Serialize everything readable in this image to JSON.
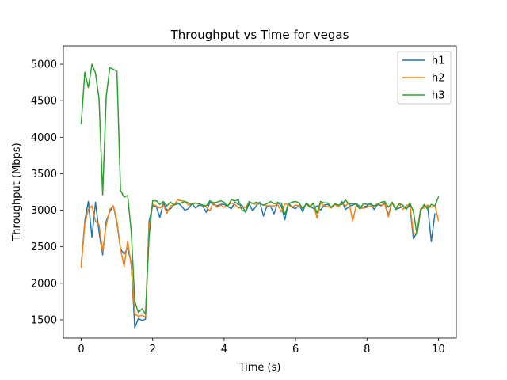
{
  "chart_data": {
    "type": "line",
    "title": "Throughput vs Time for vegas",
    "xlabel": "Time (s)",
    "ylabel": "Throughput (Mbps)",
    "xlim": [
      -0.5,
      10.5
    ],
    "ylim": [
      1250,
      5250
    ],
    "xticks": [
      0,
      2,
      4,
      6,
      8,
      10
    ],
    "yticks": [
      1500,
      2000,
      2500,
      3000,
      3500,
      4000,
      4500,
      5000
    ],
    "grid": false,
    "legend_position": "top-right",
    "x": [
      0.0,
      0.1,
      0.2,
      0.3,
      0.4,
      0.5,
      0.6,
      0.7,
      0.8,
      0.9,
      1.0,
      1.1,
      1.2,
      1.3,
      1.4,
      1.5,
      1.6,
      1.7,
      1.8,
      1.9,
      2.0,
      2.1,
      2.2,
      2.3,
      2.4,
      2.5,
      2.6,
      2.7,
      2.8,
      2.9,
      3.0,
      3.1,
      3.2,
      3.3,
      3.4,
      3.5,
      3.6,
      3.7,
      3.8,
      3.9,
      4.0,
      4.1,
      4.2,
      4.3,
      4.4,
      4.5,
      4.6,
      4.7,
      4.8,
      4.9,
      5.0,
      5.1,
      5.2,
      5.3,
      5.4,
      5.5,
      5.6,
      5.7,
      5.8,
      5.9,
      6.0,
      6.1,
      6.2,
      6.3,
      6.4,
      6.5,
      6.6,
      6.7,
      6.8,
      6.9,
      7.0,
      7.1,
      7.2,
      7.3,
      7.4,
      7.5,
      7.6,
      7.7,
      7.8,
      7.9,
      8.0,
      8.1,
      8.2,
      8.3,
      8.4,
      8.5,
      8.6,
      8.7,
      8.8,
      8.9,
      9.0,
      9.1,
      9.2,
      9.3,
      9.4,
      9.5,
      9.6,
      9.7,
      9.8,
      9.9,
      10.0
    ],
    "series": [
      {
        "name": "h1",
        "color": "#1f77b4",
        "values": [
          2250,
          2850,
          3120,
          2630,
          3110,
          2700,
          2390,
          2850,
          2980,
          3060,
          2820,
          2470,
          2400,
          2480,
          2280,
          1390,
          1520,
          1490,
          1510,
          2850,
          3060,
          3050,
          2900,
          3100,
          3000,
          3020,
          3080,
          3100,
          3060,
          3000,
          3020,
          3090,
          3030,
          3070,
          3060,
          2970,
          3110,
          3080,
          3060,
          3080,
          3080,
          3050,
          3020,
          3110,
          3080,
          3070,
          2970,
          3090,
          2990,
          3060,
          3110,
          2920,
          3060,
          3050,
          2950,
          3110,
          3060,
          2870,
          3100,
          3040,
          3020,
          3070,
          2980,
          3100,
          3060,
          3020,
          3060,
          3000,
          3070,
          3080,
          3040,
          3080,
          3050,
          3120,
          3010,
          3050,
          3070,
          3090,
          3050,
          3040,
          3060,
          3100,
          3010,
          3080,
          3060,
          3100,
          2930,
          3110,
          3010,
          3030,
          3050,
          3020,
          3060,
          2610,
          2700,
          3010,
          3060,
          3050,
          2570,
          2950,
          null
        ],
        "valuesNote": ""
      },
      {
        "name": "h2",
        "color": "#ff7f0e",
        "values": [
          2220,
          2820,
          3010,
          3060,
          2850,
          2800,
          2430,
          2800,
          3010,
          3060,
          2850,
          2470,
          2230,
          2580,
          2240,
          1580,
          1550,
          1560,
          1540,
          2770,
          3080,
          3060,
          3030,
          3070,
          2960,
          3060,
          3070,
          3140,
          3130,
          3120,
          3070,
          3090,
          3100,
          3080,
          3070,
          3040,
          2990,
          3110,
          3040,
          3070,
          3040,
          3070,
          3100,
          3080,
          3030,
          3030,
          3040,
          3110,
          3090,
          3080,
          3090,
          3070,
          3060,
          3060,
          3060,
          3080,
          2980,
          3090,
          3070,
          3040,
          3070,
          3060,
          3030,
          3080,
          3060,
          3090,
          2890,
          3100,
          3060,
          3050,
          3030,
          3080,
          3050,
          3100,
          3060,
          3100,
          2850,
          3070,
          3020,
          3030,
          3040,
          3060,
          3050,
          3090,
          3070,
          3080,
          2910,
          3110,
          3020,
          3090,
          3010,
          3060,
          3080,
          2680,
          2680,
          3020,
          3030,
          3070,
          3040,
          3070,
          2860
        ],
        "valuesNote": ""
      },
      {
        "name": "h3",
        "color": "#2ca02c",
        "values": [
          4190,
          4890,
          4680,
          5000,
          4880,
          4520,
          3210,
          4560,
          4950,
          4930,
          4900,
          3270,
          3180,
          3200,
          2710,
          1750,
          1600,
          1650,
          1580,
          2640,
          3130,
          3130,
          3080,
          3120,
          3060,
          3110,
          3070,
          3090,
          3100,
          3120,
          3100,
          3080,
          3100,
          3090,
          3070,
          3060,
          3130,
          3100,
          3110,
          3130,
          3110,
          3050,
          3140,
          3130,
          3140,
          3000,
          2980,
          3120,
          3090,
          3110,
          3090,
          3070,
          3090,
          3120,
          3090,
          3100,
          3100,
          2940,
          3090,
          3110,
          3120,
          3100,
          3020,
          3090,
          3040,
          3100,
          2960,
          3120,
          3100,
          3100,
          3040,
          3090,
          3070,
          3080,
          3140,
          3080,
          3090,
          3080,
          3020,
          3090,
          3080,
          3080,
          3060,
          3080,
          3110,
          3120,
          3040,
          3110,
          3010,
          3090,
          3070,
          3010,
          3100,
          2980,
          2660,
          2990,
          3080,
          3010,
          3080,
          3060,
          3180
        ],
        "valuesNote": ""
      }
    ]
  }
}
